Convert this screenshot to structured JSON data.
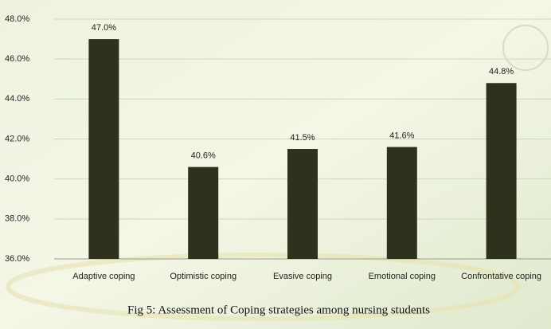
{
  "chart_data": {
    "type": "bar",
    "caption": "Fig 5: Assessment of Coping strategies among nursing students",
    "categories": [
      "Adaptive coping",
      "Optimistic coping",
      "Evasive coping",
      "Emotional coping",
      "Confrontative coping"
    ],
    "values": [
      47.0,
      40.6,
      41.5,
      41.6,
      44.8
    ],
    "value_labels": [
      "47.0%",
      "40.6%",
      "41.5%",
      "41.6%",
      "44.8%"
    ],
    "color": "#2e311b",
    "ylim": [
      36,
      48
    ],
    "yticks": [
      {
        "value": 36,
        "label": "36.0%"
      },
      {
        "value": 38,
        "label": "38.0%"
      },
      {
        "value": 40,
        "label": "40.0%"
      },
      {
        "value": 42,
        "label": "42.0%"
      },
      {
        "value": 44,
        "label": "44.0%"
      },
      {
        "value": 46,
        "label": "46.0%"
      },
      {
        "value": 48,
        "label": "48.0%"
      }
    ],
    "grid": true
  }
}
